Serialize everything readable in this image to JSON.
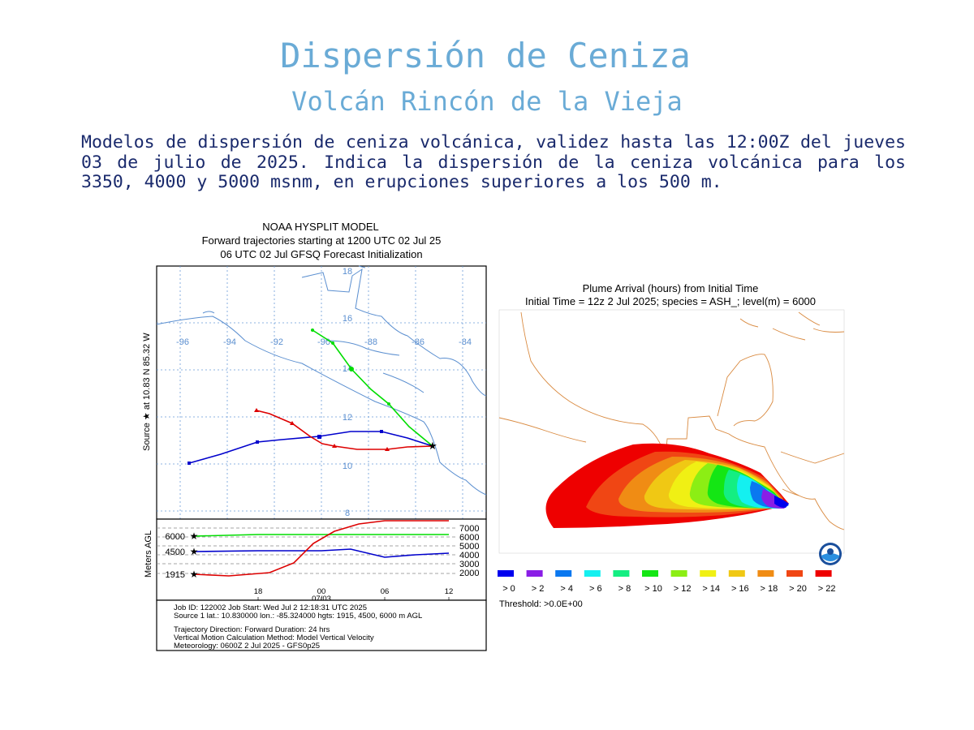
{
  "header": {
    "title": "Dispersión de Ceniza",
    "subtitle": "Volcán Rincón de la Vieja"
  },
  "description": "Modelos de dispersión de ceniza volcánica, validez  hasta  las  12:00Z del jueves 03 de julio de 2025. Indica  la  dispersión  de  la  ceniza volcánica para los 3350, 4000 y 5000 msnm, en erupciones superiores  a los 500 m.",
  "trajectory_figure": {
    "title_lines": [
      "NOAA HYSPLIT MODEL",
      "Forward trajectories starting at 1200 UTC 02 Jul 25",
      "06 UTC 02 Jul    GFSQ  Forecast Initialization"
    ],
    "source_label": "Source ★  at   10.83 N   85.32 W",
    "vertical_axis_label": "Meters AGL",
    "longitude_labels": [
      "-96",
      "-94",
      "-92",
      "-90",
      "-88",
      "-86",
      "-84"
    ],
    "latitude_labels": [
      "18",
      "16",
      "14",
      "12",
      "10",
      "8"
    ],
    "left_height_labels": [
      "6000",
      "4500",
      "1915"
    ],
    "right_height_labels": [
      "7000",
      "6000",
      "5000",
      "4000",
      "3000",
      "2000"
    ],
    "time_labels": [
      "18",
      "00",
      "06",
      "12"
    ],
    "date_label": "07/03",
    "info_lines": [
      "Job ID: 122002                    Job Start: Wed Jul  2 12:18:31 UTC 2025",
      "Source 1 lat.: 10.830000  lon.: -85.324000  hgts: 1915, 4500, 6000 m AGL",
      "Trajectory Direction: Forward      Duration: 24 hrs",
      "Vertical Motion Calculation Method:      Model Vertical Velocity",
      "Meteorology: 0600Z 2 Jul 2025 - GFS0p25"
    ],
    "series_colors": {
      "6000m": "#00dd00",
      "4500m": "#0000cc",
      "1915m": "#dd0000"
    }
  },
  "plume_figure": {
    "title_lines": [
      "Plume Arrival (hours) from Initial Time",
      "Initial Time = 12z  2 Jul 2025;  species = ASH_;  level(m) =  6000"
    ],
    "legend": [
      {
        "label": "> 0",
        "color": "#0000ee"
      },
      {
        "label": "> 2",
        "color": "#8a1ee6"
      },
      {
        "label": "> 4",
        "color": "#0a78f0"
      },
      {
        "label": "> 6",
        "color": "#14f0f0"
      },
      {
        "label": "> 8",
        "color": "#14ee82"
      },
      {
        "label": "> 10",
        "color": "#14e614"
      },
      {
        "label": "> 12",
        "color": "#8cee14"
      },
      {
        "label": "> 14",
        "color": "#f0f014"
      },
      {
        "label": "> 16",
        "color": "#f0c814"
      },
      {
        "label": "> 18",
        "color": "#f08c14"
      },
      {
        "label": "> 20",
        "color": "#f04614"
      },
      {
        "label": "> 22",
        "color": "#ee0000"
      }
    ],
    "threshold": "Threshold: >0.0E+00",
    "logo": "noaa-logo"
  }
}
